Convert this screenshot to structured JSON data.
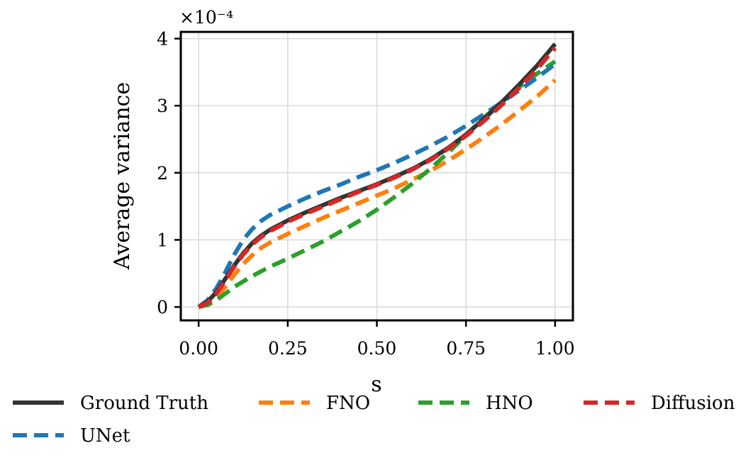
{
  "chart_data": {
    "type": "line",
    "title": "",
    "xlabel": "s",
    "ylabel": "Average variance",
    "y_multiplier_label": "×10⁻⁴",
    "xlim": [
      -0.05,
      1.05
    ],
    "ylim": [
      -0.2,
      4.1
    ],
    "x_ticks": [
      0.0,
      0.25,
      0.5,
      0.75,
      1.0
    ],
    "x_tick_labels": [
      "0.00",
      "0.25",
      "0.50",
      "0.75",
      "1.00"
    ],
    "y_ticks": [
      0,
      1,
      2,
      3,
      4
    ],
    "y_tick_labels": [
      "0",
      "1",
      "2",
      "3",
      "4"
    ],
    "grid": true,
    "legend_position": "bottom",
    "series": [
      {
        "name": "Ground Truth",
        "color": "#333333",
        "style": "solid",
        "x": [
          0,
          0.025,
          0.05,
          0.075,
          0.1,
          0.125,
          0.15,
          0.175,
          0.2,
          0.25,
          0.3,
          0.35,
          0.4,
          0.45,
          0.5,
          0.55,
          0.6,
          0.65,
          0.7,
          0.75,
          0.8,
          0.85,
          0.9,
          0.95,
          1.0
        ],
        "values": [
          0.0,
          0.08,
          0.22,
          0.42,
          0.62,
          0.8,
          0.95,
          1.06,
          1.15,
          1.29,
          1.41,
          1.52,
          1.63,
          1.73,
          1.83,
          1.94,
          2.06,
          2.2,
          2.37,
          2.57,
          2.8,
          3.05,
          3.32,
          3.6,
          3.92
        ]
      },
      {
        "name": "FNO",
        "color": "#ff7f0e",
        "style": "dashed",
        "x": [
          0,
          0.025,
          0.05,
          0.075,
          0.1,
          0.125,
          0.15,
          0.175,
          0.2,
          0.25,
          0.3,
          0.35,
          0.4,
          0.45,
          0.5,
          0.55,
          0.6,
          0.65,
          0.7,
          0.75,
          0.8,
          0.85,
          0.9,
          0.95,
          1.0
        ],
        "values": [
          0.0,
          0.05,
          0.15,
          0.3,
          0.48,
          0.64,
          0.77,
          0.88,
          0.96,
          1.09,
          1.21,
          1.33,
          1.44,
          1.55,
          1.66,
          1.77,
          1.9,
          2.03,
          2.18,
          2.35,
          2.53,
          2.72,
          2.93,
          3.14,
          3.38
        ]
      },
      {
        "name": "HNO",
        "color": "#2ca02c",
        "style": "dashed",
        "x": [
          0,
          0.025,
          0.05,
          0.075,
          0.1,
          0.125,
          0.15,
          0.175,
          0.2,
          0.25,
          0.3,
          0.35,
          0.4,
          0.45,
          0.5,
          0.55,
          0.6,
          0.65,
          0.7,
          0.75,
          0.8,
          0.85,
          0.9,
          0.95,
          1.0
        ],
        "values": [
          0.0,
          0.03,
          0.1,
          0.2,
          0.3,
          0.38,
          0.46,
          0.53,
          0.6,
          0.72,
          0.85,
          0.98,
          1.13,
          1.28,
          1.45,
          1.64,
          1.84,
          2.06,
          2.3,
          2.56,
          2.82,
          3.05,
          3.28,
          3.48,
          3.66
        ]
      },
      {
        "name": "Diffusion",
        "color": "#d62728",
        "style": "dashed",
        "x": [
          0,
          0.025,
          0.05,
          0.075,
          0.1,
          0.125,
          0.15,
          0.175,
          0.2,
          0.25,
          0.3,
          0.35,
          0.4,
          0.45,
          0.5,
          0.55,
          0.6,
          0.65,
          0.7,
          0.75,
          0.8,
          0.85,
          0.9,
          0.95,
          1.0
        ],
        "values": [
          0.0,
          0.06,
          0.2,
          0.4,
          0.6,
          0.78,
          0.93,
          1.04,
          1.13,
          1.27,
          1.39,
          1.5,
          1.61,
          1.72,
          1.82,
          1.93,
          2.05,
          2.19,
          2.36,
          2.55,
          2.77,
          3.01,
          3.27,
          3.55,
          3.86
        ]
      },
      {
        "name": "UNet",
        "color": "#1f77b4",
        "style": "dashed",
        "x": [
          0,
          0.025,
          0.05,
          0.075,
          0.1,
          0.125,
          0.15,
          0.175,
          0.2,
          0.25,
          0.3,
          0.35,
          0.4,
          0.45,
          0.5,
          0.55,
          0.6,
          0.65,
          0.7,
          0.75,
          0.8,
          0.85,
          0.9,
          0.95,
          1.0
        ],
        "values": [
          0.0,
          0.1,
          0.28,
          0.52,
          0.78,
          1.0,
          1.16,
          1.28,
          1.37,
          1.5,
          1.62,
          1.73,
          1.83,
          1.94,
          2.04,
          2.15,
          2.27,
          2.4,
          2.54,
          2.7,
          2.87,
          3.05,
          3.23,
          3.42,
          3.62
        ]
      }
    ],
    "legend_order": [
      "Ground Truth",
      "FNO",
      "HNO",
      "Diffusion",
      "UNet"
    ]
  }
}
